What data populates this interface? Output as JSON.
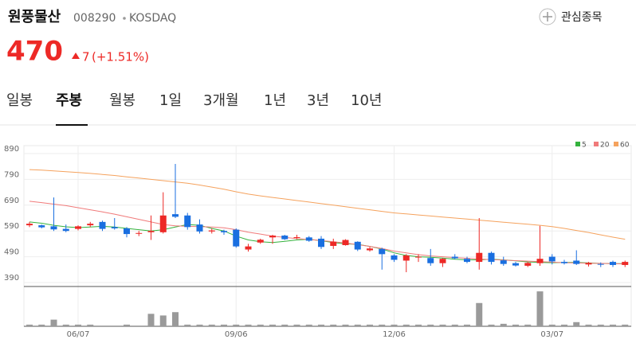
{
  "header": {
    "name": "원풍물산",
    "code": "008290",
    "market": "KOSDAQ",
    "watch": "관심종목",
    "price": "470",
    "change": "7",
    "change_pct": "(+1.51%)"
  },
  "tabs": [
    "일봉",
    "주봉",
    "월봉",
    "1일",
    "3개월",
    "1년",
    "3년",
    "10년"
  ],
  "chart_data": {
    "type": "candlestick",
    "categories": [
      null,
      null,
      null,
      null,
      "06/07",
      null,
      null,
      null,
      null,
      null,
      null,
      null,
      null,
      null,
      null,
      null,
      null,
      "09/06",
      null,
      null,
      null,
      null,
      null,
      null,
      null,
      null,
      null,
      null,
      null,
      null,
      "12/06",
      null,
      null,
      null,
      null,
      null,
      null,
      null,
      null,
      null,
      null,
      null,
      null,
      "03/07",
      null,
      null,
      null,
      null,
      null,
      null
    ],
    "open": [
      612,
      612,
      608,
      598,
      598,
      612,
      625,
      605,
      600,
      580,
      585,
      585,
      655,
      650,
      615,
      588,
      590,
      595,
      518,
      545,
      565,
      572,
      563,
      565,
      560,
      532,
      535,
      548,
      515,
      520,
      495,
      475,
      488,
      485,
      465,
      490,
      482,
      470,
      505,
      476,
      465,
      455,
      465,
      490,
      470,
      475,
      460,
      462,
      470,
      458
    ],
    "high": [
      625,
      615,
      720,
      615,
      612,
      625,
      630,
      640,
      605,
      590,
      650,
      740,
      850,
      660,
      635,
      600,
      595,
      600,
      540,
      560,
      575,
      575,
      575,
      570,
      570,
      560,
      558,
      550,
      528,
      525,
      500,
      500,
      500,
      520,
      485,
      500,
      490,
      640,
      510,
      490,
      470,
      470,
      610,
      500,
      478,
      515,
      470,
      468,
      475,
      475
    ],
    "low": [
      605,
      600,
      590,
      585,
      592,
      605,
      590,
      595,
      565,
      570,
      555,
      580,
      640,
      595,
      580,
      580,
      575,
      525,
      510,
      540,
      540,
      555,
      558,
      548,
      520,
      520,
      533,
      512,
      510,
      440,
      470,
      430,
      470,
      455,
      450,
      480,
      465,
      440,
      460,
      455,
      452,
      450,
      455,
      460,
      460,
      458,
      452,
      450,
      450,
      450
    ],
    "close": [
      618,
      604,
      596,
      590,
      608,
      618,
      598,
      600,
      578,
      582,
      590,
      650,
      645,
      605,
      588,
      592,
      585,
      530,
      530,
      556,
      572,
      558,
      566,
      552,
      528,
      548,
      555,
      518,
      522,
      500,
      478,
      495,
      490,
      465,
      482,
      484,
      470,
      505,
      470,
      462,
      456,
      466,
      482,
      472,
      465,
      462,
      466,
      460,
      458,
      470
    ],
    "up_color": "#ed2926",
    "down_color": "#1a6fe0",
    "volume": [
      2,
      2,
      8,
      2,
      2,
      2,
      0,
      0,
      2,
      0,
      15,
      13,
      17,
      2,
      2,
      2,
      2,
      2,
      2,
      2,
      2,
      2,
      2,
      2,
      2,
      2,
      2,
      2,
      2,
      2,
      2,
      2,
      2,
      2,
      2,
      2,
      2,
      28,
      2,
      3,
      2,
      2,
      42,
      2,
      2,
      5,
      2,
      2,
      2,
      2
    ],
    "volume_color": "#9a9a9a",
    "volume_ylim": [
      0,
      45
    ],
    "series": [
      {
        "name": "5",
        "color": "#34b23d",
        "values": [
          625,
          620,
          612,
          606,
          603,
          605,
          608,
          605,
          600,
          595,
          590,
          595,
          605,
          615,
          612,
          600,
          590,
          570,
          555,
          548,
          545,
          550,
          555,
          558,
          552,
          545,
          540,
          538,
          530,
          520,
          505,
          495,
          490,
          488,
          485,
          480,
          478,
          478,
          480,
          478,
          474,
          470,
          468,
          467,
          468,
          468,
          466,
          464,
          463,
          463
        ]
      },
      {
        "name": "20",
        "color": "#f07a7a",
        "values": [
          705,
          700,
          694,
          688,
          680,
          672,
          664,
          655,
          645,
          635,
          625,
          615,
          610,
          608,
          607,
          605,
          602,
          595,
          585,
          578,
          570,
          565,
          560,
          557,
          553,
          548,
          543,
          537,
          530,
          522,
          512,
          505,
          498,
          493,
          490,
          487,
          484,
          481,
          479,
          477,
          475,
          473,
          471,
          469,
          467,
          466,
          465,
          464,
          463,
          462
        ]
      },
      {
        "name": "60",
        "color": "#f5a25d",
        "values": [
          828,
          826,
          823,
          820,
          817,
          813,
          809,
          805,
          800,
          795,
          790,
          785,
          780,
          775,
          768,
          760,
          752,
          742,
          733,
          726,
          720,
          714,
          708,
          702,
          696,
          690,
          684,
          678,
          672,
          666,
          660,
          656,
          652,
          648,
          644,
          640,
          636,
          632,
          628,
          624,
          620,
          616,
          612,
          607,
          600,
          592,
          584,
          575,
          566,
          558
        ]
      }
    ],
    "ylim": [
      390,
      890
    ],
    "yticks": [
      390,
      490,
      590,
      690,
      790,
      890
    ],
    "grid": true
  }
}
